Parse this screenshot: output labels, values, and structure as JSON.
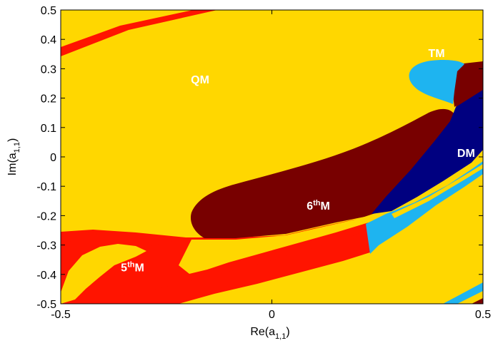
{
  "chart_data": {
    "type": "heatmap",
    "title": "",
    "xlabel": "Re(a",
    "xlabel_sub": "1,1",
    "xlabel_close": ")",
    "ylabel": "Im(a",
    "ylabel_sub": "1,1",
    "ylabel_close": ")",
    "xlim": [
      -0.5,
      0.5
    ],
    "ylim": [
      -0.5,
      0.5
    ],
    "x_ticks": [
      {
        "value": -0.5,
        "label": "-0.5"
      },
      {
        "value": 0,
        "label": "0"
      },
      {
        "value": 0.5,
        "label": "0.5"
      }
    ],
    "y_ticks": [
      {
        "value": 0.5,
        "label": "0.5"
      },
      {
        "value": 0.4,
        "label": "0.4"
      },
      {
        "value": 0.3,
        "label": "0.3"
      },
      {
        "value": 0.2,
        "label": "0.2"
      },
      {
        "value": 0.1,
        "label": "0.1"
      },
      {
        "value": 0,
        "label": "0"
      },
      {
        "value": -0.1,
        "label": "-0.1"
      },
      {
        "value": -0.2,
        "label": "-0.2"
      },
      {
        "value": -0.3,
        "label": "-0.3"
      },
      {
        "value": -0.4,
        "label": "-0.4"
      },
      {
        "value": -0.5,
        "label": "-0.5"
      }
    ],
    "grid": false,
    "colors": {
      "QM": "#ffd700",
      "5thM": "#ff1400",
      "6thM": "#780000",
      "DM": "#000080",
      "TM": "#1eb4f0"
    },
    "regions": [
      {
        "id": "QM",
        "base": "QM",
        "sup": "",
        "label_at": [
          -0.17,
          0.25
        ]
      },
      {
        "id": "TM",
        "base": "TM",
        "sup": "",
        "label_at": [
          0.39,
          0.34
        ]
      },
      {
        "id": "DM",
        "base": "DM",
        "sup": "",
        "label_at": [
          0.46,
          0.0
        ]
      },
      {
        "id": "6thM",
        "base": "6",
        "sup": "th",
        "tail": "M",
        "label_at": [
          0.11,
          -0.18
        ]
      },
      {
        "id": "5thM",
        "base": "5",
        "sup": "th",
        "tail": "M",
        "label_at": [
          -0.33,
          -0.39
        ]
      }
    ]
  }
}
